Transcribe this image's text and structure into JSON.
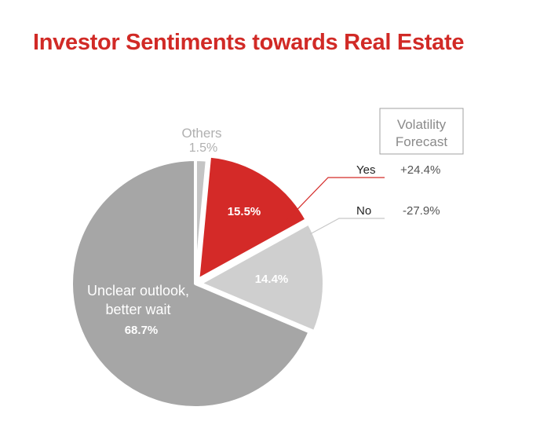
{
  "title": "Investor Sentiments towards Real Estate",
  "colors": {
    "title": "#d12a26",
    "yes": "#d42a28",
    "no": "#cfcfcf",
    "unclear": "#a6a6a6",
    "others": "#c4c4c4",
    "box_border": "#a0a0a0",
    "muted_text": "#8a8a8a"
  },
  "chart_data": {
    "type": "pie",
    "title": "Investor Sentiments towards Real Estate",
    "slices": [
      {
        "key": "others",
        "label": "Others",
        "value": 1.5,
        "display": "1.5%"
      },
      {
        "key": "yes",
        "label": "Yes",
        "value": 15.5,
        "display": "15.5%"
      },
      {
        "key": "no",
        "label": "No",
        "value": 14.4,
        "display": "14.4%"
      },
      {
        "key": "unclear",
        "label_lines": [
          "Unclear outlook,",
          "better wait"
        ],
        "value": 68.7,
        "display": "68.7%"
      }
    ],
    "volatility_forecast": {
      "header_lines": [
        "Volatility",
        "Forecast"
      ],
      "rows": [
        {
          "label": "Yes",
          "value": "+24.4%"
        },
        {
          "label": "No",
          "value": "-27.9%"
        }
      ]
    }
  }
}
